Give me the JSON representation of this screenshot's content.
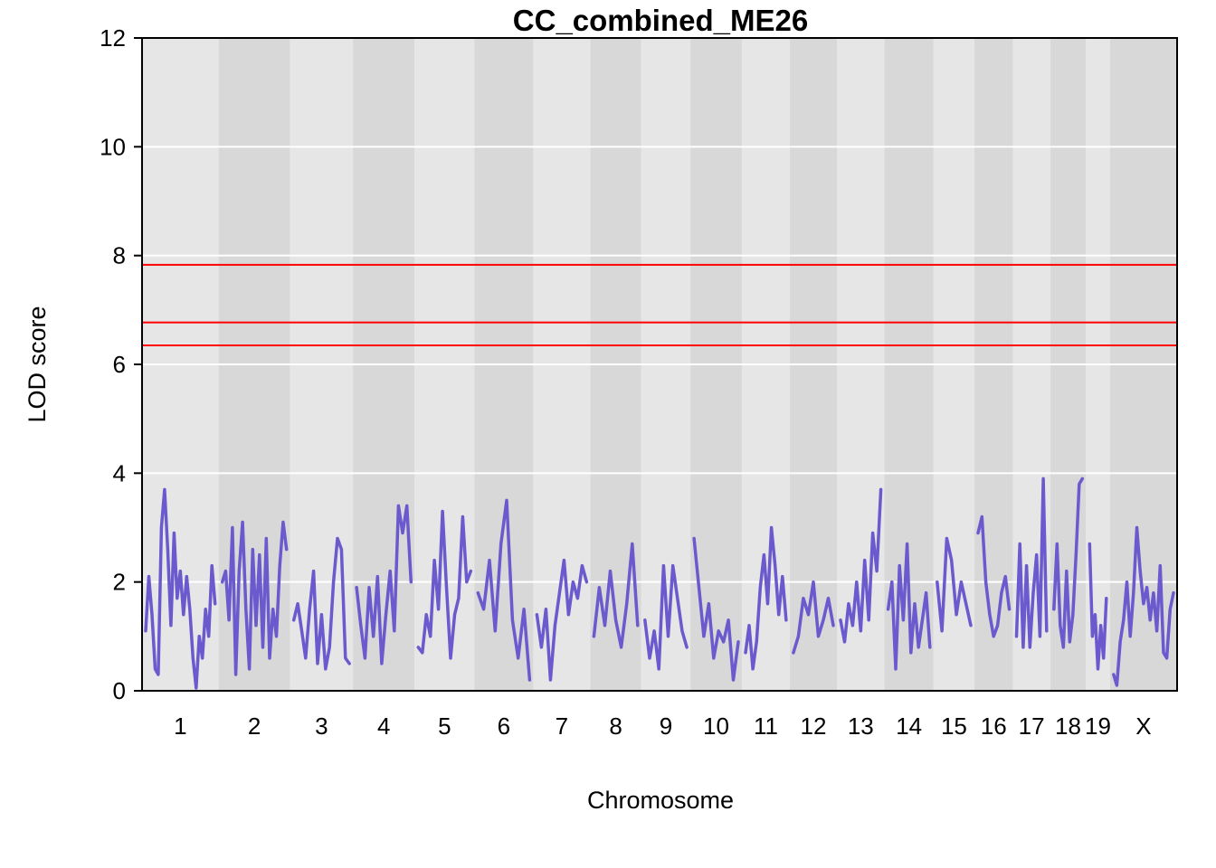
{
  "chart_data": {
    "type": "line",
    "title": "CC_combined_ME26",
    "xlabel": "Chromosome",
    "ylabel": "LOD score",
    "ylim": [
      0,
      12
    ],
    "yticks": [
      0,
      2,
      4,
      6,
      8,
      10,
      12
    ],
    "grid": true,
    "legend": "none",
    "colors": {
      "line": "#6a5acd",
      "threshold": "#ff0000",
      "band_light": "#e6e6e6",
      "band_dark": "#d8d8d8",
      "gridline": "#ffffff"
    },
    "thresholds": [
      7.83,
      6.77,
      6.35
    ],
    "chromosomes": [
      {
        "name": "1",
        "length": 195
      },
      {
        "name": "2",
        "length": 182
      },
      {
        "name": "3",
        "length": 160
      },
      {
        "name": "4",
        "length": 157
      },
      {
        "name": "5",
        "length": 152
      },
      {
        "name": "6",
        "length": 150
      },
      {
        "name": "7",
        "length": 145
      },
      {
        "name": "8",
        "length": 130
      },
      {
        "name": "9",
        "length": 125
      },
      {
        "name": "10",
        "length": 131
      },
      {
        "name": "11",
        "length": 122
      },
      {
        "name": "12",
        "length": 120
      },
      {
        "name": "13",
        "length": 121
      },
      {
        "name": "14",
        "length": 125
      },
      {
        "name": "15",
        "length": 104
      },
      {
        "name": "16",
        "length": 98
      },
      {
        "name": "17",
        "length": 95
      },
      {
        "name": "18",
        "length": 91
      },
      {
        "name": "19",
        "length": 61
      },
      {
        "name": "X",
        "length": 171
      }
    ],
    "series": [
      {
        "color": "#6a5acd",
        "lod_by_chromosome": [
          [
            1.1,
            2.1,
            1.4,
            0.4,
            0.3,
            3.0,
            3.7,
            2.6,
            1.2,
            2.9,
            1.7,
            2.2,
            1.4,
            2.1,
            1.5,
            0.6,
            0.05,
            1.0,
            0.6,
            1.5,
            1.0,
            2.3,
            1.6
          ],
          [
            2.0,
            2.2,
            1.3,
            3.0,
            0.3,
            2.2,
            3.1,
            1.5,
            0.4,
            2.6,
            1.2,
            2.5,
            0.8,
            2.8,
            0.6,
            1.5,
            1.0,
            2.3,
            3.1,
            2.6
          ],
          [
            1.3,
            1.6,
            1.1,
            0.6,
            1.5,
            2.2,
            0.5,
            1.4,
            0.4,
            0.8,
            2.0,
            2.8,
            2.6,
            0.6,
            0.5
          ],
          [
            1.9,
            1.2,
            0.6,
            1.9,
            1.0,
            2.1,
            0.5,
            1.4,
            2.2,
            1.1,
            3.4,
            2.9,
            3.4,
            2.0
          ],
          [
            0.8,
            0.7,
            1.4,
            1.0,
            2.4,
            1.5,
            3.3,
            1.9,
            0.6,
            1.4,
            1.7,
            3.2,
            2.0,
            2.2
          ],
          [
            1.8,
            1.5,
            2.4,
            1.1,
            2.7,
            3.5,
            1.3,
            0.6,
            1.5,
            0.2
          ],
          [
            1.4,
            0.8,
            1.5,
            0.2,
            1.2,
            1.8,
            2.4,
            1.4,
            2.0,
            1.7,
            2.3,
            2.0
          ],
          [
            1.0,
            1.9,
            1.2,
            2.2,
            1.3,
            0.8,
            1.6,
            2.7,
            1.2
          ],
          [
            1.3,
            0.6,
            1.1,
            0.4,
            2.3,
            1.0,
            2.3,
            1.7,
            1.1,
            0.8
          ],
          [
            2.8,
            1.9,
            1.0,
            1.6,
            0.6,
            1.1,
            0.9,
            1.3,
            0.2,
            0.9
          ],
          [
            0.7,
            1.2,
            0.4,
            0.9,
            1.9,
            2.5,
            1.6,
            3.0,
            2.3,
            1.4,
            2.1,
            1.3
          ],
          [
            0.7,
            1.0,
            1.7,
            1.4,
            2.0,
            1.0,
            1.3,
            1.7,
            1.2
          ],
          [
            1.3,
            0.9,
            1.6,
            1.2,
            2.0,
            1.1,
            2.4,
            1.3,
            2.9,
            2.2,
            3.7
          ],
          [
            1.5,
            2.0,
            0.4,
            2.3,
            1.3,
            2.7,
            0.7,
            1.6,
            0.8,
            1.3,
            1.8,
            0.8
          ],
          [
            2.0,
            1.1,
            2.8,
            2.4,
            1.4,
            2.0,
            1.6,
            1.2
          ],
          [
            2.9,
            3.2,
            2.0,
            1.4,
            1.0,
            1.2,
            1.8,
            2.1,
            1.5
          ],
          [
            1.0,
            2.7,
            0.8,
            2.3,
            0.8,
            1.8,
            2.5,
            1.0,
            3.9,
            1.1
          ],
          [
            1.5,
            2.7,
            1.2,
            0.8,
            2.2,
            0.9,
            1.4,
            2.5,
            3.8,
            3.9
          ],
          [
            2.7,
            1.0,
            1.4,
            0.4,
            1.2,
            0.6,
            1.7
          ],
          [
            0.3,
            0.1,
            0.9,
            1.3,
            2.0,
            1.0,
            1.8,
            3.0,
            2.2,
            1.6,
            1.9,
            1.3,
            1.8,
            1.1,
            2.3,
            0.7,
            0.6,
            1.5,
            1.8
          ]
        ]
      }
    ]
  }
}
